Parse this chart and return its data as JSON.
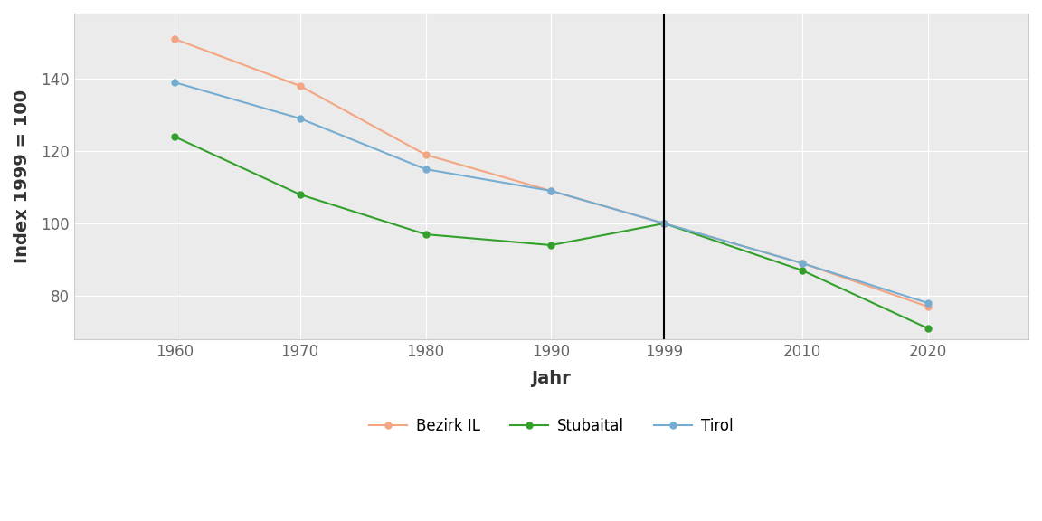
{
  "years": [
    1960,
    1970,
    1980,
    1990,
    1999,
    2010,
    2020
  ],
  "bezirk_il": [
    151,
    138,
    119,
    109,
    100,
    89,
    77
  ],
  "stubaital": [
    124,
    108,
    97,
    94,
    100,
    87,
    71
  ],
  "tirol": [
    139,
    129,
    115,
    109,
    100,
    89,
    78
  ],
  "bezirk_il_color": "#F4A582",
  "stubaital_color": "#33A02C",
  "tirol_color": "#74ADD1",
  "vline_x": 1999,
  "xlabel": "Jahr",
  "ylabel": "Index 1999 = 100",
  "yticks": [
    80,
    100,
    120,
    140
  ],
  "xticks": [
    1960,
    1970,
    1980,
    1990,
    1999,
    2010,
    2020
  ],
  "ylim": [
    68,
    158
  ],
  "xlim": [
    1952,
    2028
  ],
  "panel_bg": "#EBEBEB",
  "plot_bg": "#ffffff",
  "grid_color": "#ffffff",
  "legend_labels": [
    "Bezirk IL",
    "Stubaital",
    "Tirol"
  ],
  "label_fontsize": 14,
  "tick_fontsize": 12,
  "legend_fontsize": 12,
  "linewidth": 1.5,
  "markersize": 5
}
